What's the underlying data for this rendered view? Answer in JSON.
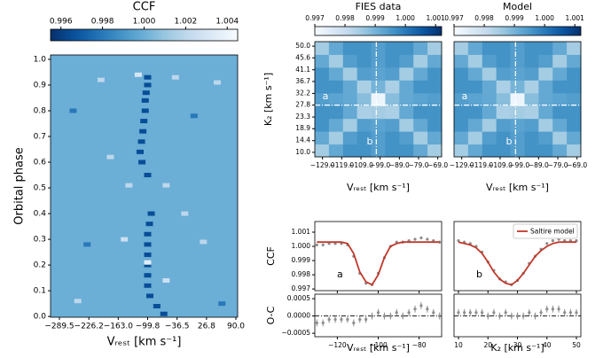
{
  "chart_data": [
    {
      "type": "heatmap",
      "colorbar_title": "CCF",
      "colormap": "Blues",
      "colormap_reversed": true,
      "clim": [
        0.9955,
        1.0045
      ],
      "cticks": [
        0.996,
        0.998,
        {
          "value": 1.0,
          "label": "1.000"
        },
        1.002,
        1.004
      ],
      "xlabel": "Vᵣₑₛₜ [km s⁻¹]",
      "ylabel": "Orbital phase",
      "xlim": [
        -308.6,
        93.8
      ],
      "ylim": [
        -0.003,
        1.017
      ],
      "xticks": [
        {
          "value": -289.5,
          "label": "−289.5"
        },
        {
          "value": -226.2,
          "label": "−226.2"
        },
        {
          "value": -163,
          "label": "−163.0"
        },
        {
          "value": -99.8,
          "label": "−99.8"
        },
        {
          "value": -36.5,
          "label": "−36.5"
        },
        26.8,
        {
          "value": 90,
          "label": "90.0"
        }
      ],
      "yticks": [
        {
          "value": 0,
          "label": "0.0"
        },
        0.1,
        0.2,
        0.3,
        0.4,
        0.5,
        0.6,
        0.7,
        0.8,
        0.9,
        {
          "value": 1,
          "label": "1.0"
        }
      ],
      "z_background": 1.0,
      "x": [
        -99.8,
        -99.8,
        -103,
        -105,
        -105,
        -108,
        -110,
        -113,
        -116,
        -112,
        -99.8,
        -92,
        -96,
        -99.8,
        -99.8,
        -99.8,
        -99.8,
        -99.8,
        -99.8,
        -95,
        -80,
        -65,
        -99.8,
        -120,
        -200,
        -40,
        -250,
        20,
        -150,
        -60,
        50,
        -180,
        -20,
        -260,
        60,
        -230,
        0,
        -140,
        -60
      ],
      "y": [
        0.93,
        0.9,
        0.87,
        0.84,
        0.8,
        0.76,
        0.72,
        0.68,
        0.64,
        0.6,
        0.55,
        0.4,
        0.36,
        0.32,
        0.28,
        0.24,
        0.2,
        0.16,
        0.12,
        0.08,
        0.04,
        0.01,
        0.21,
        0.94,
        0.92,
        0.93,
        0.06,
        0.29,
        0.3,
        0.14,
        0.91,
        0.62,
        0.4,
        0.8,
        0.05,
        0.28,
        0.78,
        0.51,
        0.51
      ],
      "values": [
        0.9965,
        0.9965,
        0.9965,
        0.9965,
        0.9965,
        0.9965,
        0.9965,
        0.9965,
        0.9965,
        0.9965,
        0.9965,
        0.9965,
        0.9965,
        0.9965,
        0.9965,
        0.9965,
        0.9965,
        0.9965,
        0.9965,
        0.9965,
        0.9965,
        0.9965,
        1.0035,
        1.003,
        1.002,
        1.002,
        1.002,
        1.002,
        1.0025,
        1.0025,
        1.002,
        1.002,
        1.002,
        0.998,
        0.998,
        0.998,
        0.998,
        1.002,
        1.002
      ]
    },
    {
      "type": "map",
      "colorbar_title": "FIES data",
      "colormap": "Blues",
      "colormap_reversed": false,
      "clim": [
        0.997,
        1.0012
      ],
      "cticks": [
        0.997,
        0.998,
        0.999,
        {
          "value": 1.0,
          "label": "1.000"
        },
        1.001
      ],
      "xlabel": "Vᵣₑₛₜ [km s⁻¹]",
      "ylabel": "K₂ [km s⁻¹]",
      "xlim": [
        -133,
        -67
      ],
      "ylim": [
        8.3,
        51.7
      ],
      "xticks": [
        {
          "value": -129,
          "label": "−129.0"
        },
        {
          "value": -119,
          "label": "−119.0"
        },
        {
          "value": -109,
          "label": "−109.0"
        },
        {
          "value": -99,
          "label": "−99.0"
        },
        {
          "value": -89,
          "label": "−89.0"
        },
        {
          "value": -79,
          "label": "−79.0"
        },
        {
          "value": -69,
          "label": "−69.0"
        }
      ],
      "yticks": [
        {
          "value": 10,
          "label": "10.0"
        },
        14.4,
        18.9,
        23.3,
        27.8,
        32.2,
        36.7,
        41.1,
        45.6,
        {
          "value": 50,
          "label": "50.0"
        }
      ],
      "cross": [
        -101,
        27.8
      ],
      "annotations": [
        {
          "text": "a",
          "x": -129,
          "y": 31
        },
        {
          "text": "b",
          "x": -106,
          "y": 14
        }
      ],
      "x": [
        -129,
        -121.5,
        -114,
        -106.5,
        -99,
        -91.5,
        -84,
        -76.5,
        -69
      ],
      "y": [
        10,
        15,
        20,
        25,
        30,
        35,
        40,
        45,
        50
      ],
      "z": [
        [
          0.9985,
          0.9992,
          0.9996,
          0.9996,
          0.9994,
          0.9996,
          0.9996,
          0.9992,
          0.9985
        ],
        [
          0.9992,
          0.9985,
          0.9994,
          0.9996,
          0.9994,
          0.9996,
          0.9994,
          0.9985,
          0.9992
        ],
        [
          0.9996,
          0.9992,
          0.9985,
          0.9994,
          0.9993,
          0.9994,
          0.9985,
          0.9992,
          0.9996
        ],
        [
          0.9996,
          0.9996,
          0.9992,
          0.9984,
          0.9985,
          0.9984,
          0.9992,
          0.9996,
          0.9996
        ],
        [
          0.9994,
          0.9993,
          0.9992,
          0.9988,
          0.9972,
          0.9988,
          0.9992,
          0.9993,
          0.9994
        ],
        [
          0.9996,
          0.9996,
          0.9992,
          0.9984,
          0.999,
          0.9984,
          0.9992,
          0.9996,
          0.9996
        ],
        [
          0.9996,
          0.9992,
          0.9985,
          0.9994,
          0.9993,
          0.9994,
          0.9985,
          0.9992,
          0.9996
        ],
        [
          0.9992,
          0.9985,
          0.9994,
          0.9996,
          0.9994,
          0.9996,
          0.9994,
          0.9985,
          0.9992
        ],
        [
          0.9985,
          0.9992,
          0.9996,
          0.9996,
          0.9994,
          0.9996,
          0.9996,
          0.9992,
          0.9985
        ]
      ]
    },
    {
      "type": "map",
      "colorbar_title": "Model",
      "colormap": "Blues",
      "colormap_reversed": false,
      "clim": [
        0.997,
        1.0012
      ],
      "cticks": [
        0.997,
        0.998,
        0.999,
        {
          "value": 1.0,
          "label": "1.000"
        },
        1.001
      ],
      "xlabel": "Vᵣₑₛₜ [km s⁻¹]",
      "xlim": [
        -133,
        -67
      ],
      "ylim": [
        8.3,
        51.7
      ],
      "xticks": [
        {
          "value": -129,
          "label": "−129.0"
        },
        {
          "value": -119,
          "label": "−119.0"
        },
        {
          "value": -109,
          "label": "−109.0"
        },
        {
          "value": -99,
          "label": "−99.0"
        },
        {
          "value": -89,
          "label": "−89.0"
        },
        {
          "value": -79,
          "label": "−79.0"
        },
        {
          "value": -69,
          "label": "−69.0"
        }
      ],
      "cross": [
        -101,
        27.8
      ],
      "annotations": [
        {
          "text": "a",
          "x": -129,
          "y": 31
        },
        {
          "text": "b",
          "x": -106,
          "y": 14
        }
      ],
      "x": [
        -129,
        -121.5,
        -114,
        -106.5,
        -99,
        -91.5,
        -84,
        -76.5,
        -69
      ],
      "y": [
        10,
        15,
        20,
        25,
        30,
        35,
        40,
        45,
        50
      ],
      "z": [
        [
          0.9985,
          0.9992,
          0.9996,
          0.9996,
          0.9994,
          0.9996,
          0.9996,
          0.9992,
          0.9985
        ],
        [
          0.9992,
          0.9985,
          0.9994,
          0.9996,
          0.9994,
          0.9996,
          0.9994,
          0.9985,
          0.9992
        ],
        [
          0.9996,
          0.9992,
          0.9985,
          0.9994,
          0.9993,
          0.9994,
          0.9985,
          0.9992,
          0.9996
        ],
        [
          0.9996,
          0.9996,
          0.9992,
          0.9984,
          0.9985,
          0.9984,
          0.9992,
          0.9996,
          0.9996
        ],
        [
          0.9994,
          0.9993,
          0.9992,
          0.9988,
          0.9972,
          0.9988,
          0.9992,
          0.9993,
          0.9994
        ],
        [
          0.9996,
          0.9996,
          0.9992,
          0.9984,
          0.999,
          0.9984,
          0.9992,
          0.9996,
          0.9996
        ],
        [
          0.9996,
          0.9992,
          0.9985,
          0.9994,
          0.9993,
          0.9994,
          0.9985,
          0.9992,
          0.9996
        ],
        [
          0.9992,
          0.9985,
          0.9994,
          0.9996,
          0.9994,
          0.9996,
          0.9994,
          0.9985,
          0.9992
        ],
        [
          0.9985,
          0.9992,
          0.9996,
          0.9996,
          0.9994,
          0.9996,
          0.9996,
          0.9992,
          0.9985
        ]
      ]
    },
    {
      "type": "profile",
      "ylabel": "CCF",
      "ylabel_residual": "O-C",
      "xlabel": "Vᵣₑₛₜ [km s⁻¹]",
      "annotation": "a",
      "point_color": "#8c8c8c",
      "xlim": [
        -131,
        -69
      ],
      "ylim": [
        0.99688,
        1.00175
      ],
      "residual_ylim": [
        -0.0006,
        0.00063
      ],
      "xticks": [
        {
          "value": -120,
          "label": "−120"
        },
        {
          "value": -100,
          "label": "−100"
        },
        {
          "value": -80,
          "label": "−80"
        }
      ],
      "yticks": [
        0.997,
        0.998,
        0.999,
        {
          "value": 1.0,
          "label": "1.000"
        },
        1.001
      ],
      "residual_yticks": [
        {
          "value": -0.0005,
          "label": "−0.0005"
        },
        {
          "value": 0,
          "label": "0.0000"
        },
        0.0005
      ],
      "x": [
        -130,
        -127,
        -124,
        -121,
        -118,
        -115,
        -112,
        -109,
        -106,
        -103,
        -100,
        -97,
        -94,
        -91,
        -88,
        -85,
        -82,
        -79,
        -76,
        -73,
        -70
      ],
      "values": [
        1.0001,
        1.0001,
        1.0002,
        1.0002,
        1.0002,
        1.0001,
        0.9993,
        0.9981,
        0.9974,
        0.9973,
        0.9981,
        0.9992,
        1.0,
        1.0003,
        1.0003,
        1.0004,
        1.0005,
        1.0006,
        1.0005,
        1.0004,
        1.0003
      ],
      "errors": [
        0.0001,
        0.0001,
        0.0001,
        0.0001,
        0.0001,
        0.0001,
        0.0001,
        0.0001,
        0.0001,
        0.0001,
        0.0001,
        0.0001,
        0.0001,
        0.0001,
        0.0001,
        0.0001,
        0.0001,
        0.0001,
        0.0001,
        0.0001,
        0.0001
      ],
      "residuals": [
        -0.0002,
        -0.0002,
        -0.0001,
        -0.0001,
        -0.0001,
        -0.0001,
        -0.0002,
        -0.0001,
        -0.0001,
        0,
        0.0001,
        0,
        0,
        0.0001,
        0,
        0.0001,
        0.0002,
        0.0003,
        0.0002,
        0.0001,
        0
      ],
      "model": {
        "color": "#c0392b",
        "values": [
          1.0003,
          1.0003,
          1.0003,
          1.0003,
          1.0003,
          1.0002,
          0.9995,
          0.9982,
          0.9975,
          0.9973,
          0.998,
          0.9992,
          1.0,
          1.0002,
          1.0003,
          1.0003,
          1.0003,
          1.0003,
          1.0003,
          1.0003,
          1.0003
        ]
      }
    },
    {
      "type": "profile",
      "xlabel": "K₂ [km s⁻¹]",
      "annotation": "b",
      "point_color": "#8c8c8c",
      "legend": "upper right",
      "xlim": [
        8.5,
        51.5
      ],
      "ylim": [
        0.99688,
        1.00175
      ],
      "residual_ylim": [
        -0.0006,
        0.00063
      ],
      "xticks": [
        10,
        20,
        30,
        40,
        50
      ],
      "x": [
        10,
        12,
        14,
        16,
        18,
        20,
        22,
        24,
        26,
        28,
        30,
        32,
        34,
        36,
        38,
        40,
        42,
        44,
        46,
        48,
        50
      ],
      "values": [
        1.0004,
        1.0003,
        1.0002,
        1.0,
        0.9996,
        0.9989,
        0.9983,
        0.9977,
        0.9975,
        0.9973,
        0.9976,
        0.9981,
        0.9988,
        0.9993,
        0.9998,
        1.0002,
        1.0004,
        1.0005,
        1.0004,
        1.0004,
        1.0004
      ],
      "errors": [
        0.0001,
        0.0001,
        0.0001,
        0.0001,
        0.0001,
        0.0001,
        0.0001,
        0.0001,
        0.0001,
        0.0001,
        0.0001,
        0.0001,
        0.0001,
        0.0001,
        0.0001,
        0.0001,
        0.0001,
        0.0001,
        0.0001,
        0.0001,
        0.0001
      ],
      "residuals": [
        0.0001,
        0.0001,
        0.0001,
        0.0001,
        0.0001,
        0,
        0.0001,
        0,
        0.0001,
        0,
        0,
        0,
        0.0001,
        0,
        0.0001,
        0.0002,
        0.0002,
        0.0002,
        0.0001,
        0.0001,
        0.0001
      ],
      "model": {
        "name": "Saltire model",
        "color": "#c0392b",
        "values": [
          1.0003,
          1.0002,
          1.0001,
          0.9999,
          0.9995,
          0.9989,
          0.9982,
          0.9977,
          0.9974,
          0.9973,
          0.9976,
          0.9981,
          0.9987,
          0.9993,
          0.9997,
          1.0,
          1.0002,
          1.0003,
          1.0003,
          1.0003,
          1.0003
        ]
      }
    }
  ]
}
